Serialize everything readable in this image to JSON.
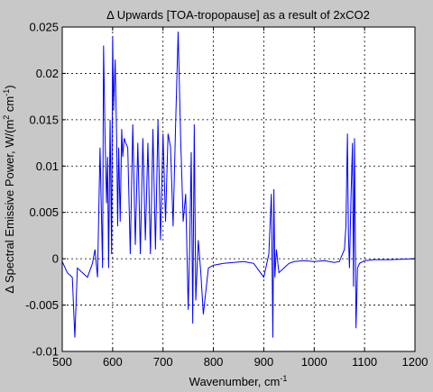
{
  "chart_data": {
    "type": "line",
    "title": "Δ Upwards [TOA-tropopause] as a result of 2xCO2",
    "xlabel": "Wavenumber, cm",
    "xlabel_sup": "-1",
    "ylabel_pre": "Δ Spectral Emissive Power, W/(m",
    "ylabel_sup1": "2",
    "ylabel_mid": " cm",
    "ylabel_sup2": "-1",
    "ylabel_post": ")",
    "xlim": [
      500,
      1200
    ],
    "ylim": [
      -0.01,
      0.025
    ],
    "xticks": [
      500,
      600,
      700,
      800,
      900,
      1000,
      1100,
      1200
    ],
    "xtick_labels": [
      "500",
      "600",
      "700",
      "800",
      "900",
      "1000",
      "1100",
      "1200"
    ],
    "yticks": [
      -0.01,
      -0.005,
      0,
      0.005,
      0.01,
      0.015,
      0.02,
      0.025
    ],
    "ytick_labels": [
      "-0.01",
      "-0.005",
      "0",
      "0.005",
      "0.01",
      "0.015",
      "0.02",
      "0.025"
    ],
    "grid": true,
    "line_color": "#0000ff",
    "x": [
      500,
      510,
      520,
      525,
      530,
      540,
      550,
      560,
      565,
      570,
      575,
      580,
      582,
      585,
      588,
      590,
      592,
      595,
      598,
      600,
      602,
      605,
      608,
      610,
      612,
      615,
      618,
      620,
      623,
      626,
      630,
      635,
      640,
      645,
      650,
      655,
      660,
      665,
      670,
      675,
      680,
      685,
      690,
      695,
      700,
      705,
      710,
      715,
      720,
      725,
      730,
      735,
      740,
      745,
      750,
      753,
      756,
      759,
      762,
      765,
      770,
      775,
      780,
      790,
      800,
      820,
      840,
      860,
      880,
      900,
      910,
      915,
      918,
      920,
      922,
      925,
      930,
      940,
      950,
      960,
      980,
      1000,
      1020,
      1040,
      1050,
      1060,
      1063,
      1066,
      1068,
      1070,
      1073,
      1076,
      1078,
      1080,
      1083,
      1086,
      1090,
      1100,
      1120,
      1150,
      1200
    ],
    "y": [
      -0.0003,
      -0.0015,
      -0.002,
      -0.0085,
      -0.001,
      -0.0015,
      -0.002,
      -0.0005,
      0.001,
      -0.002,
      0.012,
      -0.001,
      0.023,
      0.013,
      0.006,
      0.011,
      -0.001,
      0.015,
      0.0005,
      0.024,
      0.016,
      0.0215,
      0.013,
      0.0035,
      0.012,
      0.004,
      0.014,
      0.011,
      0.013,
      0.0125,
      0.012,
      0.0005,
      0.0145,
      0.0015,
      0.0125,
      0.0005,
      0.013,
      0.002,
      0.0125,
      0.0005,
      0.014,
      0.001,
      0.015,
      0.002,
      0.0135,
      0.004,
      0.0135,
      0.012,
      0.0035,
      0.0145,
      0.0245,
      0.013,
      0.004,
      0.007,
      -0.0055,
      0.0015,
      0.0115,
      -0.007,
      0.0145,
      -0.0045,
      0.002,
      -0.0015,
      -0.006,
      -0.001,
      -0.0007,
      -0.0005,
      -0.0004,
      -0.0003,
      -0.0005,
      -0.002,
      0.0005,
      0.007,
      -0.0085,
      0.0075,
      -0.002,
      0.001,
      -0.0015,
      -0.001,
      -0.0005,
      -0.0003,
      -0.0002,
      -0.0003,
      -0.0002,
      -0.0004,
      -0.0003,
      0.001,
      0.0035,
      0.0135,
      0.0025,
      -0.001,
      0.0065,
      0.0125,
      -0.003,
      0.013,
      -0.0075,
      -0.001,
      -0.0005,
      -0.0002,
      -0.0001,
      -0.0001,
      0.0
    ]
  }
}
